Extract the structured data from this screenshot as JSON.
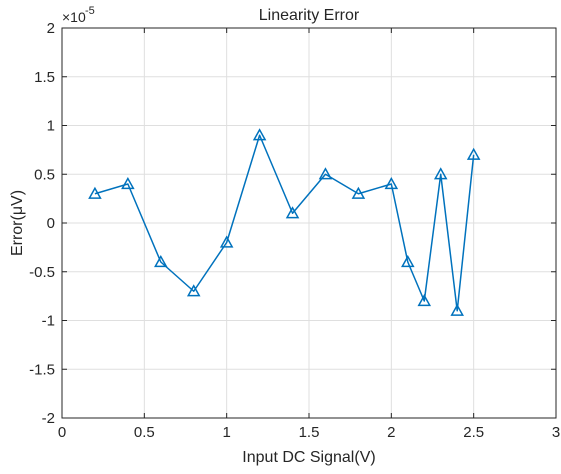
{
  "chart_data": {
    "type": "line",
    "title": "Linearity Error",
    "xlabel": "Input DC Signal(V)",
    "ylabel": "Error(μV)",
    "y_exponent_label": "×10",
    "y_exponent_power": "-5",
    "xlim": [
      0,
      3
    ],
    "ylim": [
      -2,
      2
    ],
    "xticks": [
      0,
      0.5,
      1,
      1.5,
      2,
      2.5,
      3
    ],
    "xtick_labels": [
      "0",
      "0.5",
      "1",
      "1.5",
      "2",
      "2.5",
      "3"
    ],
    "yticks": [
      -2,
      -1.5,
      -1,
      -0.5,
      0,
      0.5,
      1,
      1.5,
      2
    ],
    "ytick_labels": [
      "-2",
      "-1.5",
      "-1",
      "-0.5",
      "0",
      "0.5",
      "1",
      "1.5",
      "2"
    ],
    "grid": true,
    "series": [
      {
        "marker": "triangle",
        "color": "#0072BD",
        "x": [
          0.2,
          0.4,
          0.6,
          0.8,
          1.0,
          1.2,
          1.4,
          1.6,
          1.8,
          2.0,
          2.1,
          2.2,
          2.3,
          2.4,
          2.5
        ],
        "y": [
          0.3,
          0.4,
          -0.4,
          -0.7,
          -0.2,
          0.9,
          0.1,
          0.5,
          0.3,
          0.4,
          -0.4,
          -0.8,
          0.5,
          -0.9,
          0.7
        ]
      }
    ]
  }
}
